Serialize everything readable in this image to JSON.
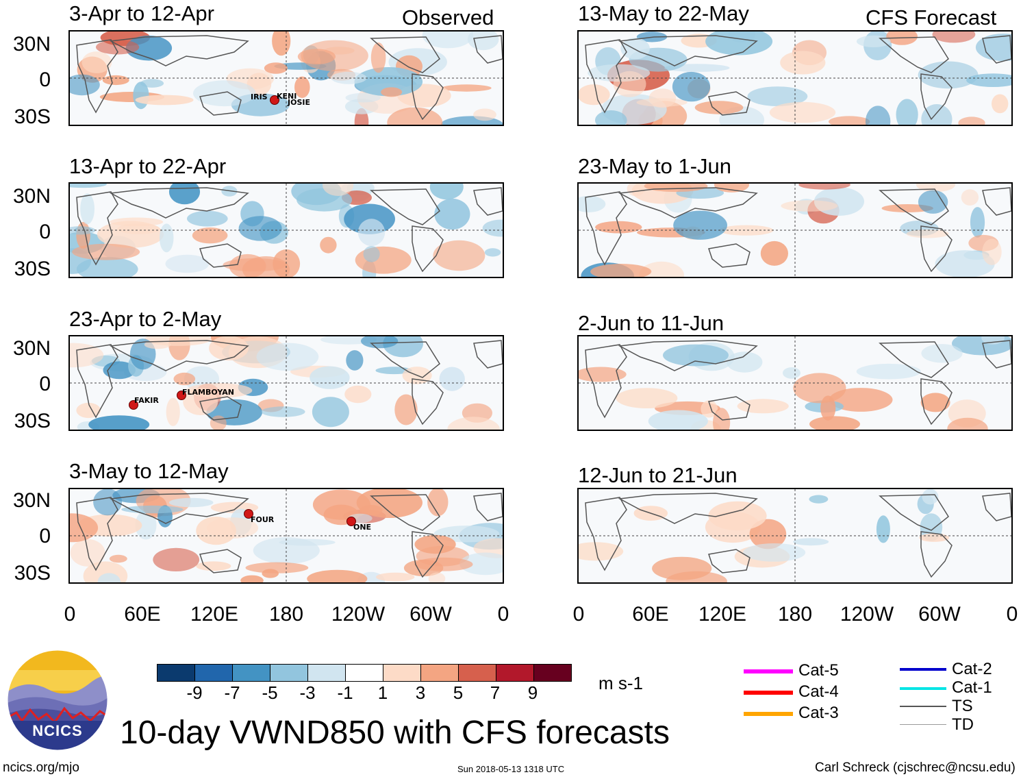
{
  "header": {
    "observed_tag": "Observed",
    "forecast_tag": "CFS Forecast"
  },
  "panels_left": [
    {
      "title": "3-Apr to 12-Apr",
      "storms": [
        "IRIS",
        "KENI",
        "JOSIE"
      ]
    },
    {
      "title": "13-Apr to 22-Apr",
      "storms": []
    },
    {
      "title": "23-Apr to 2-May",
      "storms": [
        "FAKIR",
        "FLAMBOYAN"
      ]
    },
    {
      "title": "3-May to 12-May",
      "storms": [
        "FOUR",
        "ONE"
      ]
    }
  ],
  "panels_right": [
    {
      "title": "13-May to 22-May"
    },
    {
      "title": "23-May to 1-Jun"
    },
    {
      "title": "2-Jun to 11-Jun"
    },
    {
      "title": "12-Jun to 21-Jun"
    }
  ],
  "lat_labels": [
    "30N",
    "0",
    "30S"
  ],
  "lon_labels": [
    "0",
    "60E",
    "120E",
    "180",
    "120W",
    "60W",
    "0"
  ],
  "colorbar": {
    "ticks": [
      "-9",
      "-7",
      "-5",
      "-3",
      "-1",
      "1",
      "3",
      "5",
      "7",
      "9"
    ],
    "colors": [
      "#0b3a6e",
      "#2166ac",
      "#4393c3",
      "#92c5de",
      "#d1e5f0",
      "#ffffff",
      "#fddbc7",
      "#f4a582",
      "#d6604d",
      "#b2182b",
      "#67001f"
    ],
    "unit": "m s-1"
  },
  "legend": [
    {
      "label": "Cat-5",
      "color": "#ff00ff"
    },
    {
      "label": "Cat-4",
      "color": "#ff0000"
    },
    {
      "label": "Cat-3",
      "color": "#ffa500"
    },
    {
      "label": "Cat-2",
      "color": "#0000cc"
    },
    {
      "label": "Cat-1",
      "color": "#00e5e5"
    },
    {
      "label": "TS",
      "color": "#555555"
    },
    {
      "label": "TD",
      "color": "#999999"
    }
  ],
  "logo": {
    "text": "NCICS"
  },
  "main_title": "10-day VWND850 with CFS forecasts",
  "footer": {
    "url": "ncics.org/mjo",
    "timestamp": "Sun 2018-05-13 1318 UTC",
    "credit": "Carl Schreck (cjschrec@ncsu.edu)"
  }
}
